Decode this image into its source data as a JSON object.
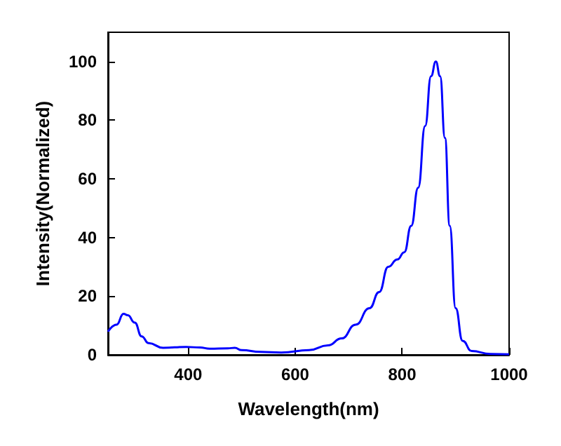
{
  "chart_data": {
    "type": "line",
    "xlabel": "Wavelength(nm)",
    "ylabel": "Intensity(Normalized)",
    "xlim": [
      250,
      1000
    ],
    "xticks": [
      400,
      600,
      800,
      1000
    ],
    "ylim": [
      0,
      110
    ],
    "yticks": [
      0,
      20,
      40,
      60,
      80,
      100
    ],
    "grid": false,
    "marker": "none",
    "line_style": "solid",
    "series": [
      {
        "color": "#0000ff",
        "x": [
          250,
          266,
          279,
          287,
          300,
          313,
          326,
          353,
          396,
          422,
          440,
          474,
          487,
          500,
          535,
          574,
          626,
          661,
          687,
          713,
          739,
          757,
          774,
          791,
          804,
          817,
          830,
          843,
          854,
          863,
          871,
          880,
          889,
          900,
          913,
          930,
          965,
          1000
        ],
        "values": [
          7.9,
          10.3,
          14,
          13.5,
          11,
          6.3,
          4,
          2.4,
          2.7,
          2.5,
          2.1,
          2.2,
          2.4,
          1.6,
          1,
          0.8,
          1.6,
          3.2,
          5.6,
          10.3,
          15.9,
          21.4,
          30,
          32.5,
          35,
          44,
          57,
          78,
          95,
          100,
          95,
          74,
          44,
          15.9,
          4.8,
          1.3,
          0.3,
          0.2
        ]
      }
    ]
  }
}
